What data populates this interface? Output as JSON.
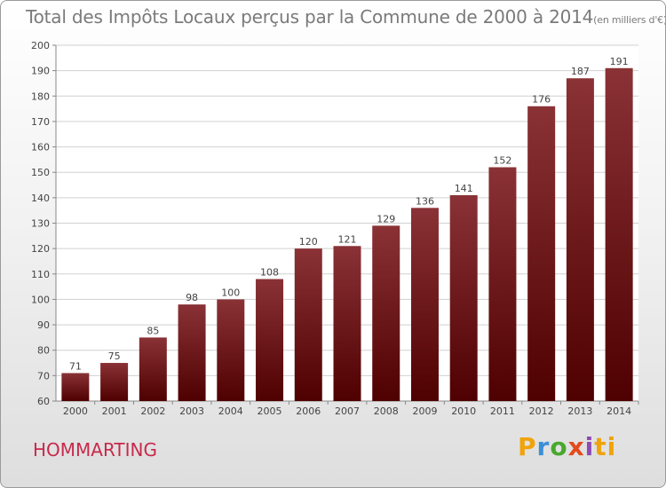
{
  "title": "Total des Impôts Locaux perçus par la Commune de 2000 à 2014",
  "unit_note": "(en milliers d'€)",
  "commune": "HOMMARTING",
  "brand": "Proxiti",
  "colors": {
    "bar_top": "#8a3236",
    "bar_bottom": "#4f0000",
    "commune": "#c8294b",
    "grid": "#d0d0d0"
  },
  "chart_data": {
    "type": "bar",
    "title": "Total des Impôts Locaux perçus par la Commune de 2000 à 2014",
    "xlabel": "",
    "ylabel": "",
    "categories": [
      "2000",
      "2001",
      "2002",
      "2003",
      "2004",
      "2005",
      "2006",
      "2007",
      "2008",
      "2009",
      "2010",
      "2011",
      "2012",
      "2013",
      "2014"
    ],
    "values": [
      71,
      75,
      85,
      98,
      100,
      108,
      120,
      121,
      129,
      136,
      141,
      152,
      176,
      187,
      191
    ],
    "ylim": [
      60,
      200
    ],
    "yticks": [
      60,
      70,
      80,
      90,
      100,
      110,
      120,
      130,
      140,
      150,
      160,
      170,
      180,
      190,
      200
    ],
    "grid": true
  }
}
